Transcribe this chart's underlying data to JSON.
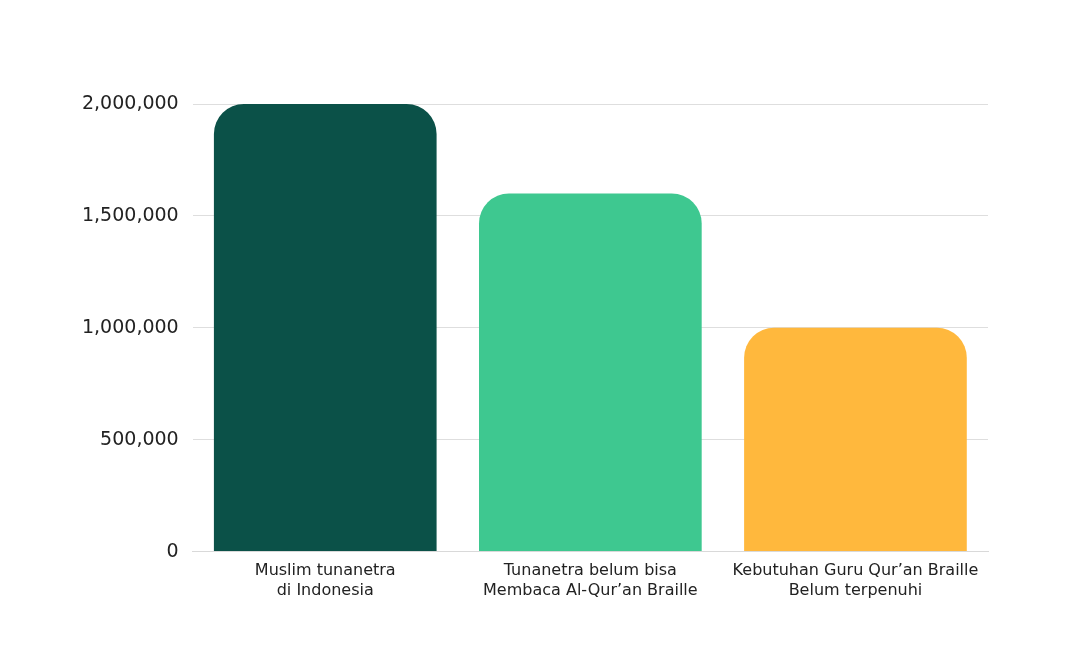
{
  "chart_data": {
    "type": "bar",
    "categories": [
      "Muslim tunanetra\ndi Indonesia",
      "Tunanetra belum bisa\nMembaca Al-Qur’an Braille",
      "Kebutuhan Guru Qur’an Braille\nBelum terpenuhi"
    ],
    "values": [
      2000000,
      1600000,
      1000000
    ],
    "colors": [
      "#0b5148",
      "#3ec890",
      "#ffb83d"
    ],
    "ylim": [
      0,
      2000000
    ],
    "yticks": [
      {
        "value": 0,
        "label": "0"
      },
      {
        "value": 500000,
        "label": "500,000"
      },
      {
        "value": 1000000,
        "label": "1,000,000"
      },
      {
        "value": 1500000,
        "label": "1,500,000"
      },
      {
        "value": 2000000,
        "label": "2,000,000"
      }
    ],
    "grid": "y",
    "legend": false
  }
}
